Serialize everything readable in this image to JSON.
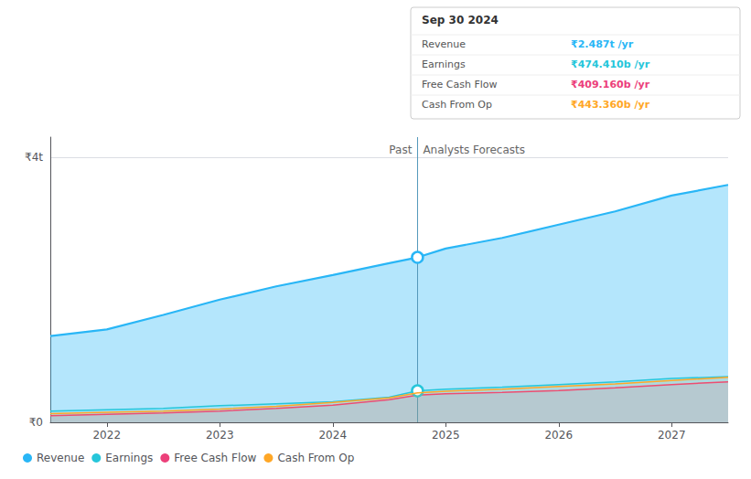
{
  "chart_data": {
    "type": "line",
    "x": [
      2021.5,
      2022.0,
      2022.5,
      2023.0,
      2023.5,
      2024.0,
      2024.5,
      2024.75,
      2025.0,
      2025.5,
      2026.0,
      2026.5,
      2027.0,
      2027.5
    ],
    "series": [
      {
        "name": "Revenue",
        "color": "#29b6f6",
        "values": [
          1300000000000.0,
          1400000000000.0,
          1620000000000.0,
          1850000000000.0,
          2050000000000.0,
          2220000000000.0,
          2400000000000.0,
          2487000000000.0,
          2620000000000.0,
          2780000000000.0,
          2980000000000.0,
          3180000000000.0,
          3420000000000.0,
          3580000000000.0
        ]
      },
      {
        "name": "Earnings",
        "color": "#26c6da",
        "values": [
          170000000000.0,
          190000000000.0,
          210000000000.0,
          250000000000.0,
          280000000000.0,
          310000000000.0,
          380000000000.0,
          474410000000.0,
          500000000000.0,
          530000000000.0,
          570000000000.0,
          610000000000.0,
          660000000000.0,
          690000000000.0
        ]
      },
      {
        "name": "Free Cash Flow",
        "color": "#ec407a",
        "values": [
          100000000000.0,
          120000000000.0,
          140000000000.0,
          170000000000.0,
          210000000000.0,
          260000000000.0,
          340000000000.0,
          409160000000.0,
          430000000000.0,
          450000000000.0,
          480000000000.0,
          520000000000.0,
          570000000000.0,
          610000000000.0
        ]
      },
      {
        "name": "Cash From Op",
        "color": "#ffa726",
        "values": [
          130000000000.0,
          150000000000.0,
          170000000000.0,
          200000000000.0,
          240000000000.0,
          300000000000.0,
          370000000000.0,
          443360000000.0,
          470000000000.0,
          500000000000.0,
          540000000000.0,
          580000000000.0,
          630000000000.0,
          680000000000.0
        ]
      }
    ],
    "xlim": [
      2021.5,
      2027.5
    ],
    "xticks": [
      2022,
      2023,
      2024,
      2025,
      2026,
      2027
    ],
    "ylim": [
      0,
      4300000000000.0
    ],
    "yticks": [
      {
        "value": 0,
        "label": "₹0"
      },
      {
        "value": 4000000000000.0,
        "label": "₹4t"
      }
    ],
    "grid": true,
    "legend": "lower left",
    "divider_x": 2024.75,
    "divider_markers": [
      "Revenue",
      "Earnings"
    ],
    "annotations": [
      "Past",
      "Analysts Forecasts"
    ],
    "tooltip": {
      "title": "Sep 30 2024",
      "rows": [
        {
          "label": "Revenue",
          "value": "₹2.487t /yr"
        },
        {
          "label": "Earnings",
          "value": "₹474.410b /yr"
        },
        {
          "label": "Free Cash Flow",
          "value": "₹409.160b /yr"
        },
        {
          "label": "Cash From Op",
          "value": "₹443.360b /yr"
        }
      ]
    }
  }
}
